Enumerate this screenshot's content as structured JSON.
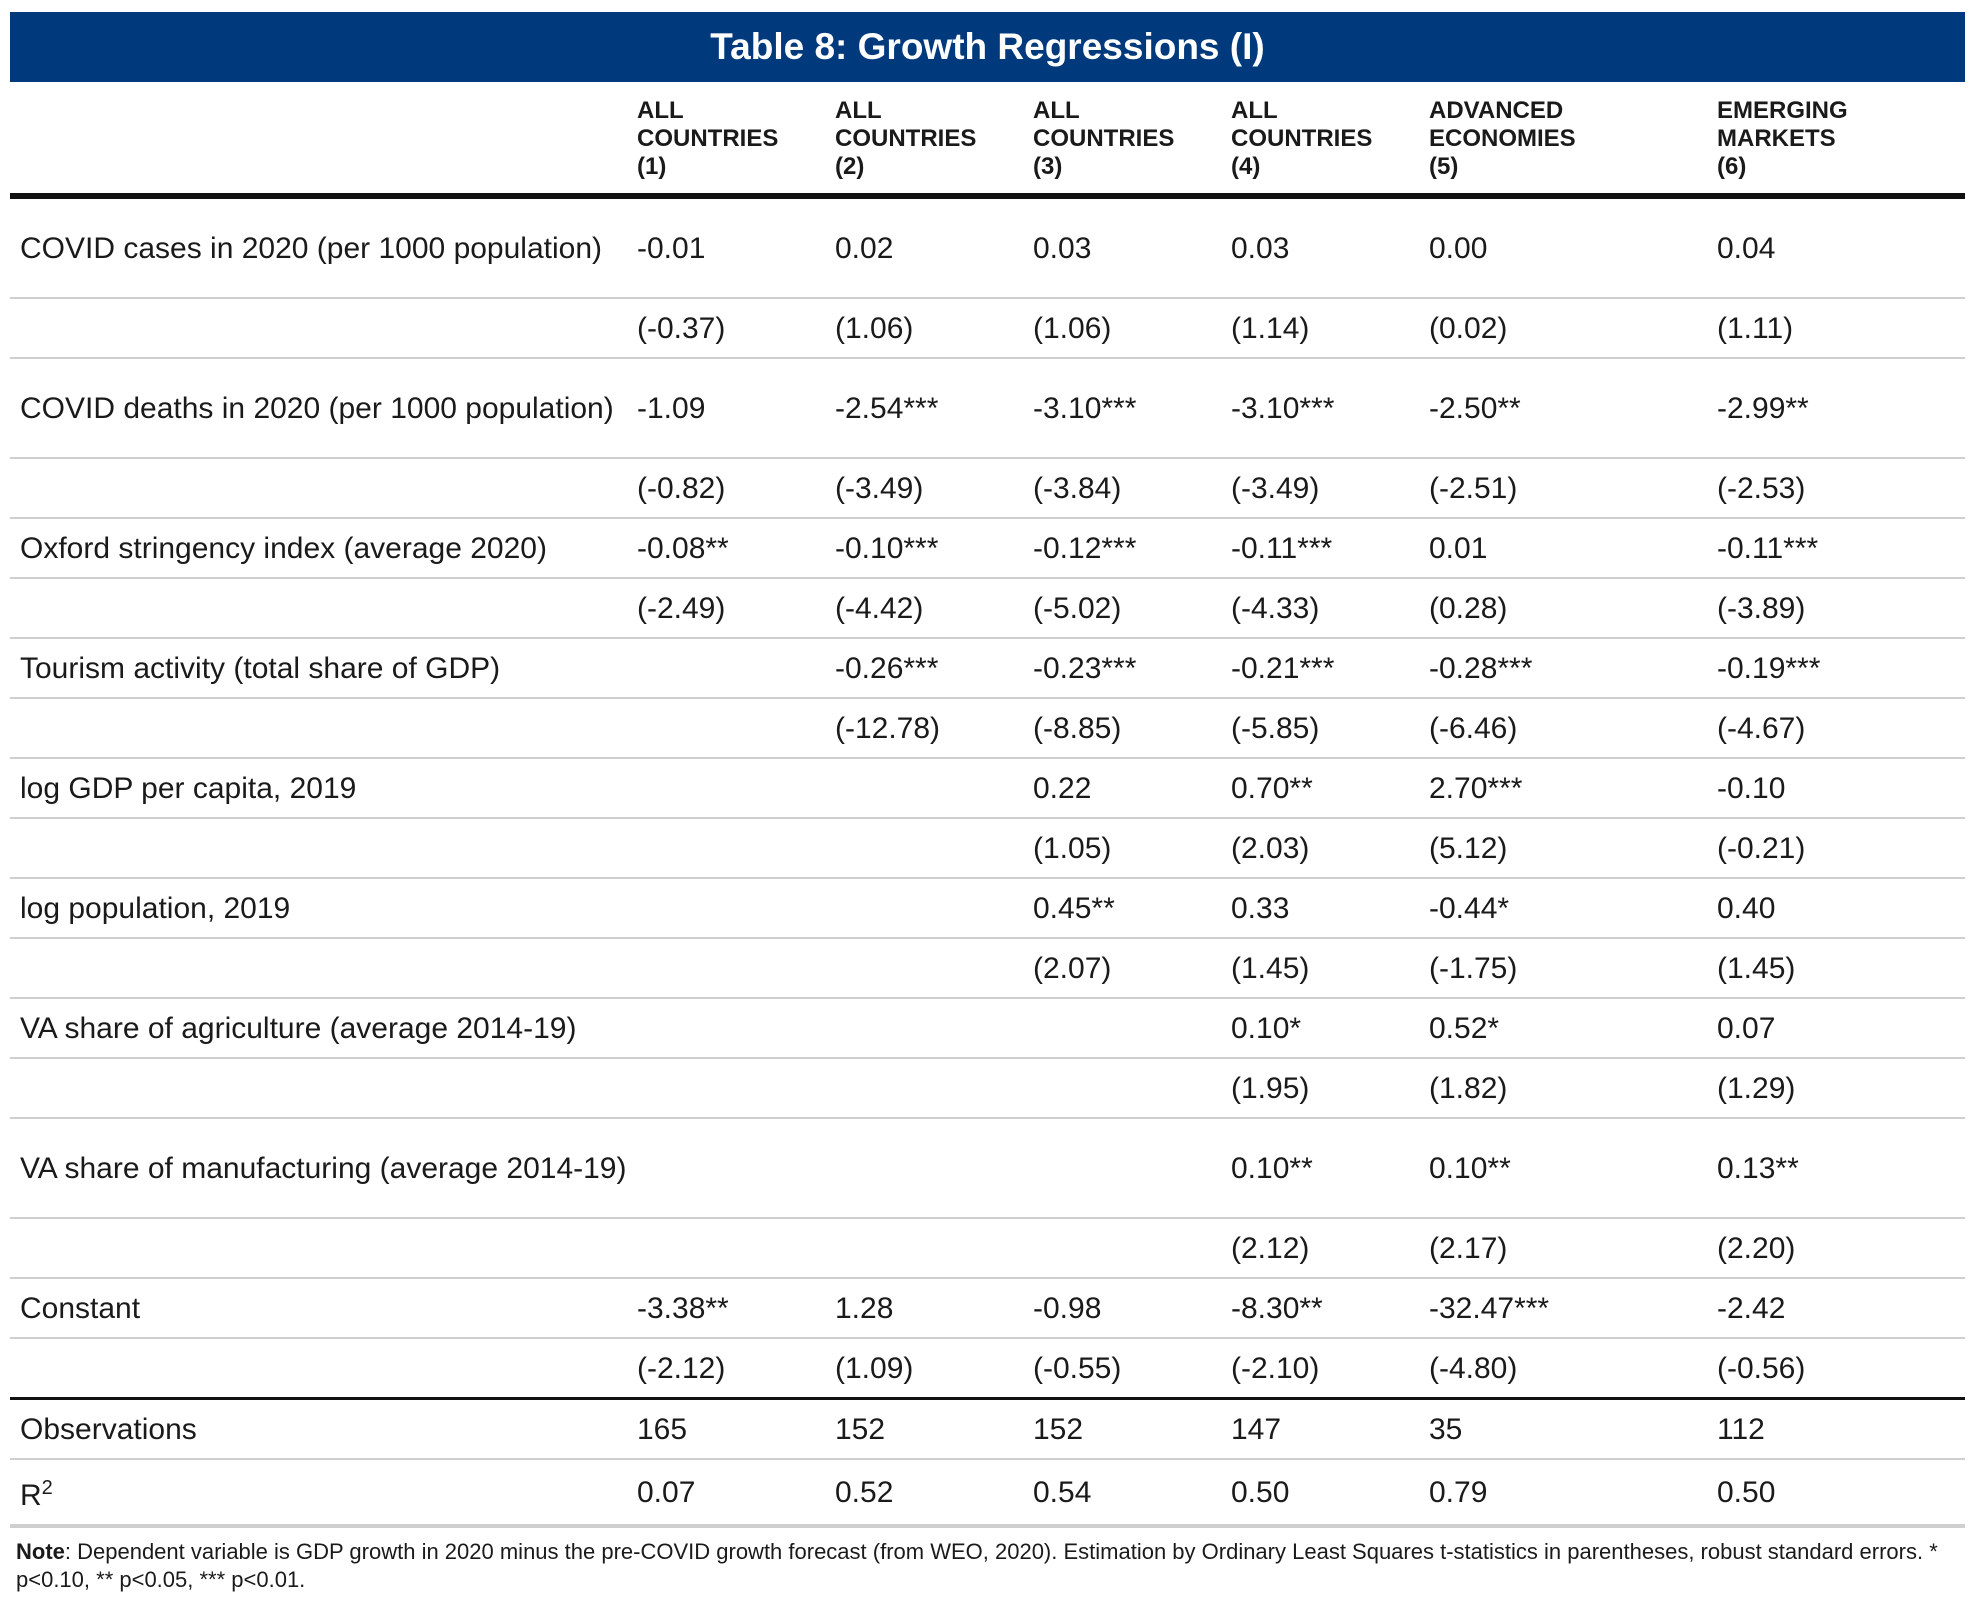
{
  "title": "Table 8: Growth Regressions (I)",
  "columns": [
    {
      "line1": "ALL",
      "line2": "COUNTRIES",
      "num": "(1)"
    },
    {
      "line1": "ALL",
      "line2": "COUNTRIES",
      "num": "(2)"
    },
    {
      "line1": "ALL",
      "line2": "COUNTRIES",
      "num": "(3)"
    },
    {
      "line1": "ALL",
      "line2": "COUNTRIES",
      "num": "(4)"
    },
    {
      "line1": "ADVANCED",
      "line2": "ECONOMIES",
      "num": "(5)"
    },
    {
      "line1": "EMERGING",
      "line2": "MARKETS",
      "num": "(6)"
    }
  ],
  "rows": [
    {
      "label": "COVID cases in 2020 (per 1000 population)",
      "coef": [
        "-0.01",
        "0.02",
        "0.03",
        "0.03",
        "0.00",
        "0.04"
      ],
      "tstat": [
        "(-0.37)",
        "(1.06)",
        "(1.06)",
        "(1.14)",
        "(0.02)",
        "(1.11)"
      ]
    },
    {
      "label": "COVID deaths in 2020 (per 1000 population)",
      "coef": [
        "-1.09",
        "-2.54***",
        "-3.10***",
        "-3.10***",
        "-2.50**",
        "-2.99**"
      ],
      "tstat": [
        "(-0.82)",
        "(-3.49)",
        "(-3.84)",
        "(-3.49)",
        "(-2.51)",
        "(-2.53)"
      ]
    },
    {
      "label": "Oxford stringency index (average 2020)",
      "coef": [
        "-0.08**",
        "-0.10***",
        "-0.12***",
        "-0.11***",
        "0.01",
        "-0.11***"
      ],
      "tstat": [
        "(-2.49)",
        "(-4.42)",
        "(-5.02)",
        "(-4.33)",
        "(0.28)",
        "(-3.89)"
      ]
    },
    {
      "label": "Tourism activity (total share of GDP)",
      "coef": [
        "",
        "-0.26***",
        "-0.23***",
        "-0.21***",
        "-0.28***",
        "-0.19***"
      ],
      "tstat": [
        "",
        "(-12.78)",
        "(-8.85)",
        "(-5.85)",
        "(-6.46)",
        "(-4.67)"
      ]
    },
    {
      "label": "log GDP per capita, 2019",
      "coef": [
        "",
        "",
        "0.22",
        "0.70**",
        "2.70***",
        "-0.10"
      ],
      "tstat": [
        "",
        "",
        "(1.05)",
        "(2.03)",
        "(5.12)",
        "(-0.21)"
      ]
    },
    {
      "label": "log population, 2019",
      "coef": [
        "",
        "",
        "0.45**",
        "0.33",
        "-0.44*",
        "0.40"
      ],
      "tstat": [
        "",
        "",
        "(2.07)",
        "(1.45)",
        "(-1.75)",
        "(1.45)"
      ]
    },
    {
      "label": "VA share of agriculture (average 2014-19)",
      "coef": [
        "",
        "",
        "",
        "0.10*",
        "0.52*",
        "0.07"
      ],
      "tstat": [
        "",
        "",
        "",
        "(1.95)",
        "(1.82)",
        "(1.29)"
      ]
    },
    {
      "label": "VA share of manufacturing (average 2014-19)",
      "coef": [
        "",
        "",
        "",
        "0.10**",
        "0.10**",
        "0.13**"
      ],
      "tstat": [
        "",
        "",
        "",
        "(2.12)",
        "(2.17)",
        "(2.20)"
      ]
    },
    {
      "label": "Constant",
      "coef": [
        "-3.38**",
        "1.28",
        "-0.98",
        "-8.30**",
        "-32.47***",
        "-2.42"
      ],
      "tstat": [
        "(-2.12)",
        "(1.09)",
        "(-0.55)",
        "(-2.10)",
        "(-4.80)",
        "(-0.56)"
      ]
    }
  ],
  "observations": {
    "label": "Observations",
    "values": [
      "165",
      "152",
      "152",
      "147",
      "35",
      "112"
    ]
  },
  "r2": {
    "label": "R",
    "sup": "2",
    "values": [
      "0.07",
      "0.52",
      "0.54",
      "0.50",
      "0.79",
      "0.50"
    ]
  },
  "note": {
    "label": "Note",
    "text": ": Dependent variable is GDP growth in 2020 minus the pre-COVID growth forecast (from WEO, 2020). Estimation by Ordinary Least Squares t-statistics in parentheses, robust standard errors. * p<0.10, ** p<0.05, *** p<0.01."
  }
}
